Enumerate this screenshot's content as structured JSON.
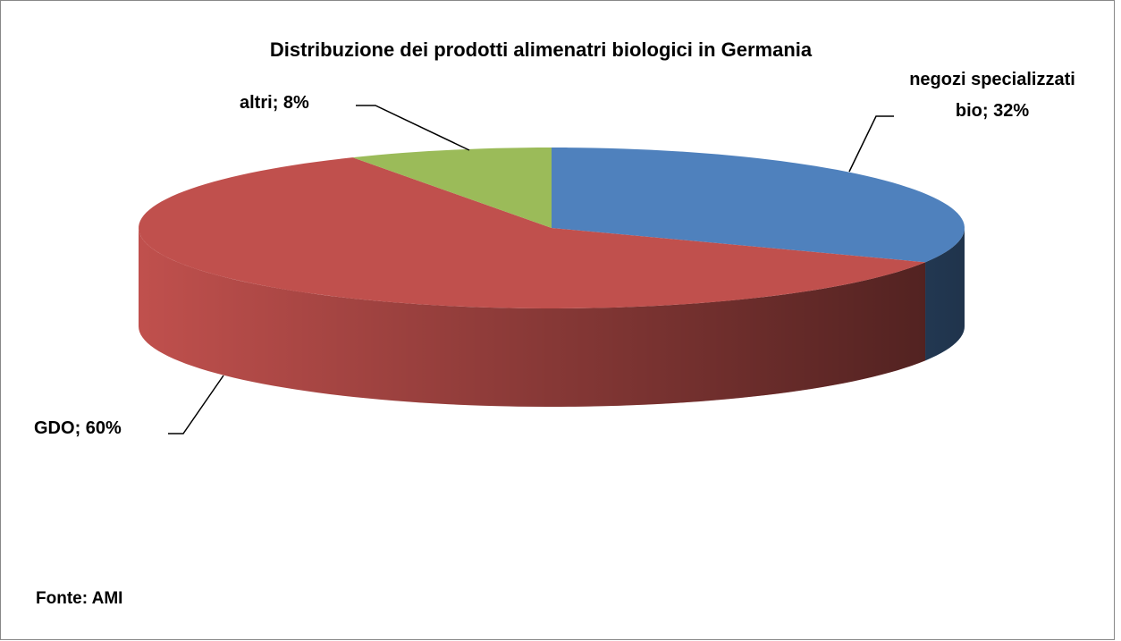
{
  "chart_data": {
    "type": "pie",
    "title": "Distribuzione dei prodotti alimenatri biologici in Germania",
    "categories": [
      "negozi specializzati bio",
      "GDO",
      "altri"
    ],
    "values": [
      32,
      60,
      8
    ],
    "value_labels": [
      "32%",
      "60%",
      "8%"
    ],
    "label_separator": ";",
    "colors": [
      "#4f81bd",
      "#c0504d",
      "#9bbb59"
    ],
    "source": "Fonte: AMI"
  }
}
